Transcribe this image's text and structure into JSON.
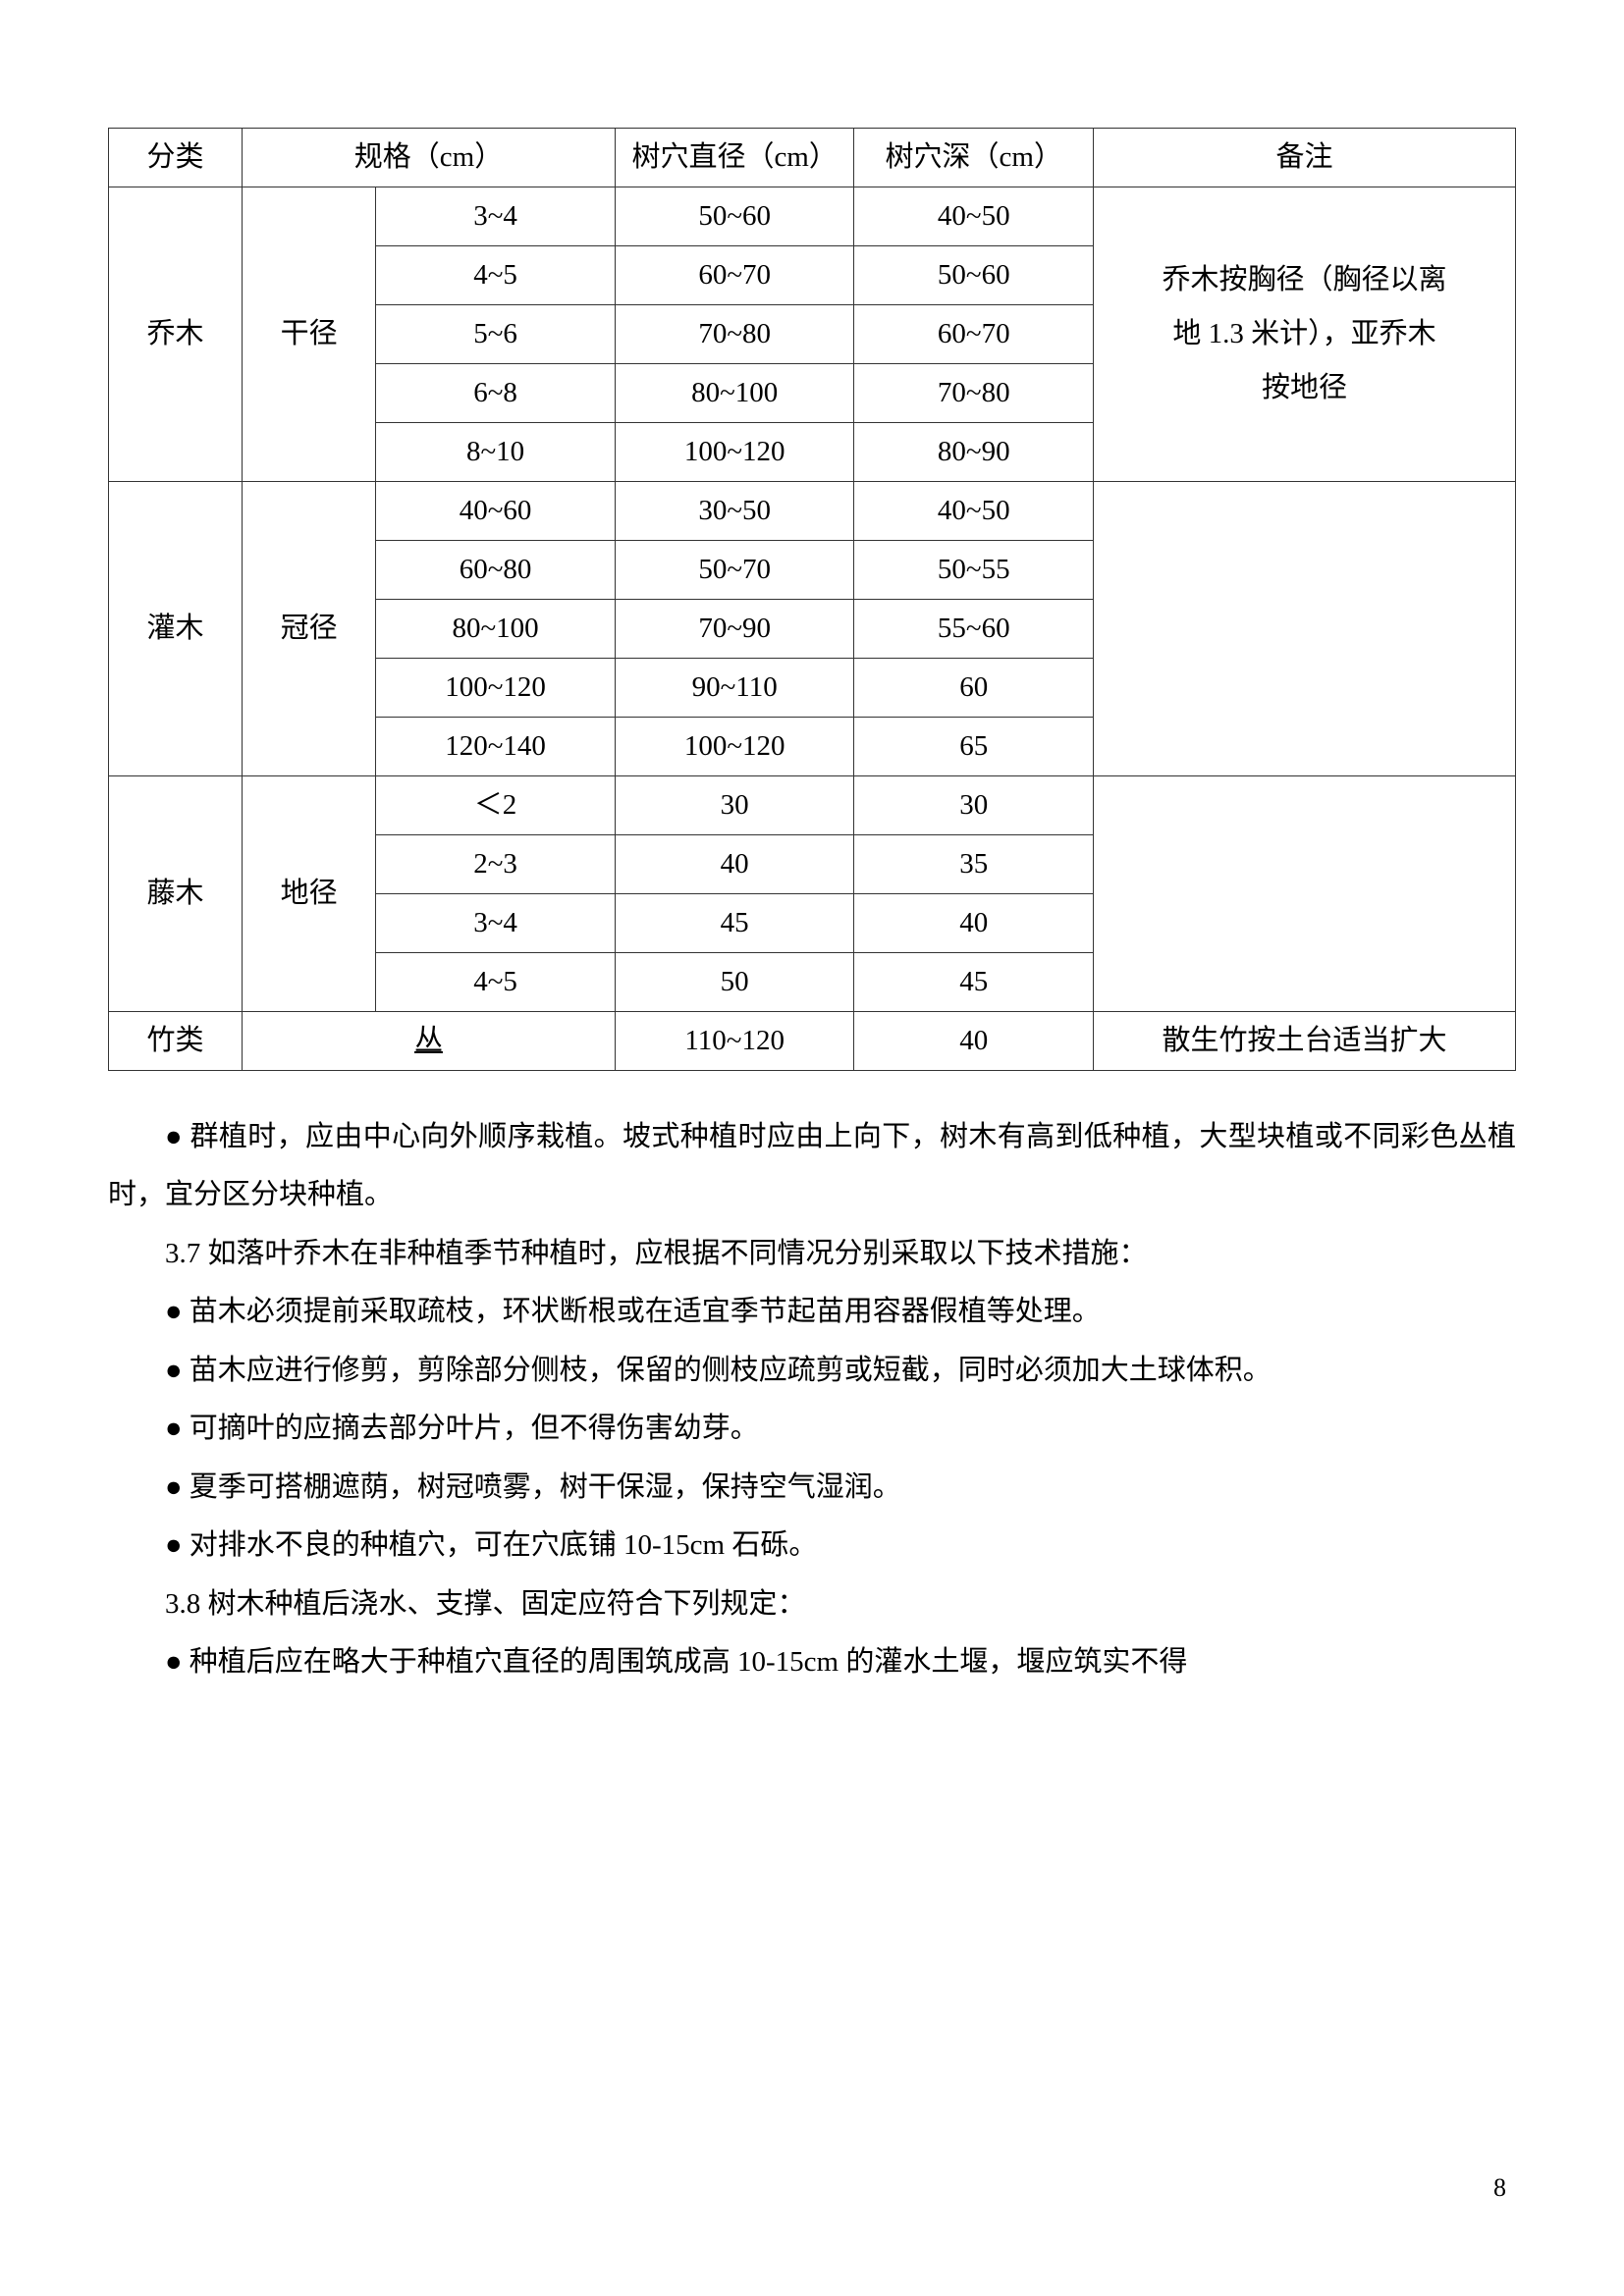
{
  "table": {
    "headers": {
      "category": "分类",
      "spec": "规格（cm）",
      "holeDia": "树穴直径（cm）",
      "holeDepth": "树穴深（cm）",
      "remark": "备注"
    },
    "groups": [
      {
        "category": "乔木",
        "measure": "干径",
        "rows": [
          {
            "spec": "3~4",
            "dia": "50~60",
            "depth": "40~50"
          },
          {
            "spec": "4~5",
            "dia": "60~70",
            "depth": "50~60"
          },
          {
            "spec": "5~6",
            "dia": "70~80",
            "depth": "60~70"
          },
          {
            "spec": "6~8",
            "dia": "80~100",
            "depth": "70~80"
          },
          {
            "spec": "8~10",
            "dia": "100~120",
            "depth": "80~90"
          }
        ],
        "remark_lines": [
          "乔木按胸径（胸径以离",
          "地 1.3 米计），亚乔木",
          "按地径"
        ]
      },
      {
        "category": "灌木",
        "measure": "冠径",
        "rows": [
          {
            "spec": "40~60",
            "dia": "30~50",
            "depth": "40~50"
          },
          {
            "spec": "60~80",
            "dia": "50~70",
            "depth": "50~55"
          },
          {
            "spec": "80~100",
            "dia": "70~90",
            "depth": "55~60"
          },
          {
            "spec": "100~120",
            "dia": "90~110",
            "depth": "60"
          },
          {
            "spec": "120~140",
            "dia": "100~120",
            "depth": "65"
          }
        ],
        "remark_lines": []
      },
      {
        "category": "藤木",
        "measure": "地径",
        "rows": [
          {
            "spec": "＜2",
            "dia": "30",
            "depth": "30"
          },
          {
            "spec": "2~3",
            "dia": "40",
            "depth": "35"
          },
          {
            "spec": "3~4",
            "dia": "45",
            "depth": "40"
          },
          {
            "spec": "4~5",
            "dia": "50",
            "depth": "45"
          }
        ],
        "remark_lines": []
      }
    ],
    "lastRow": {
      "category": "竹类",
      "measure": "丛",
      "dia": "110~120",
      "depth": "40",
      "remark": "散生竹按土台适当扩大"
    }
  },
  "paragraphs": [
    "● 群植时，应由中心向外顺序栽植。坡式种植时应由上向下，树木有高到低种植，大型块植或不同彩色丛植时，宜分区分块种植。",
    "3.7 如落叶乔木在非种植季节种植时，应根据不同情况分别采取以下技术措施：",
    "● 苗木必须提前采取疏枝，环状断根或在适宜季节起苗用容器假植等处理。",
    "● 苗木应进行修剪，剪除部分侧枝，保留的侧枝应疏剪或短截，同时必须加大土球体积。",
    "● 可摘叶的应摘去部分叶片，但不得伤害幼芽。",
    "● 夏季可搭棚遮荫，树冠喷雾，树干保湿，保持空气湿润。",
    "● 对排水不良的种植穴，可在穴底铺 10-15cm 石砾。",
    "3.8 树木种植后浇水、支撑、固定应符合下列规定：",
    "● 种植后应在略大于种植穴直径的周围筑成高 10-15cm 的灌水土堰，堰应筑实不得"
  ],
  "pageNumber": "8"
}
